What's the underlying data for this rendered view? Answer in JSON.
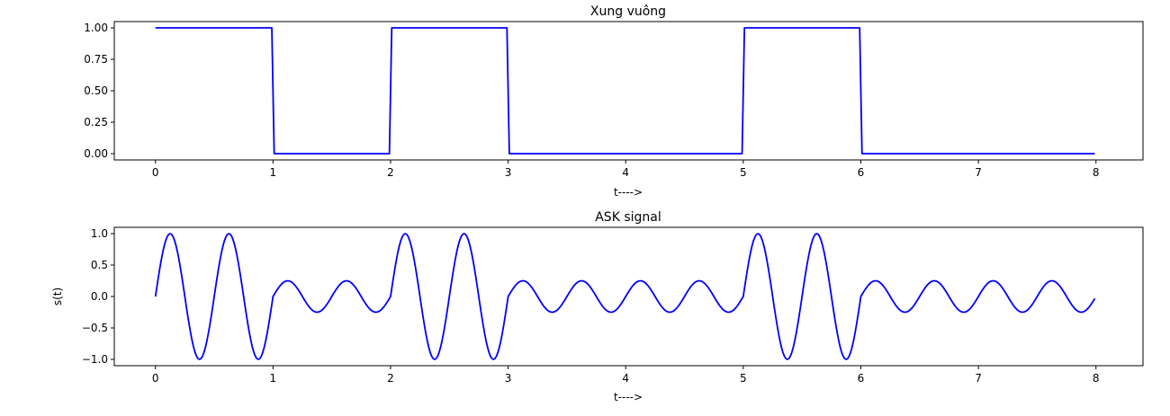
{
  "chart_data": [
    {
      "type": "line",
      "title": "Xung vuông",
      "xlabel": "t---->",
      "ylabel": "",
      "xlim": [
        -0.35,
        8.4
      ],
      "ylim": [
        -0.05,
        1.05
      ],
      "xticks": [
        0,
        1,
        2,
        3,
        4,
        5,
        6,
        7,
        8
      ],
      "xtick_labels": [
        "0",
        "1",
        "2",
        "3",
        "4",
        "5",
        "6",
        "7",
        "8"
      ],
      "yticks": [
        0,
        0.25,
        0.5,
        0.75,
        1.0
      ],
      "ytick_labels": [
        "0.00",
        "0.25",
        "0.50",
        "0.75",
        "1.00"
      ],
      "color": "#0000ff",
      "grid": false,
      "bits": [
        1,
        0,
        1,
        0,
        0,
        1,
        0,
        0
      ],
      "bit_duration": 1
    },
    {
      "type": "line",
      "title": "ASK signal",
      "xlabel": "t---->",
      "ylabel": "s(t)",
      "xlim": [
        -0.35,
        8.4
      ],
      "ylim": [
        -1.1,
        1.1
      ],
      "xticks": [
        0,
        1,
        2,
        3,
        4,
        5,
        6,
        7,
        8
      ],
      "xtick_labels": [
        "0",
        "1",
        "2",
        "3",
        "4",
        "5",
        "6",
        "7",
        "8"
      ],
      "yticks": [
        -1.0,
        -0.5,
        0.0,
        0.5,
        1.0
      ],
      "ytick_labels": [
        "−1.0",
        "−0.5",
        "0.0",
        "0.5",
        "1.0"
      ],
      "color": "#0000ff",
      "grid": false,
      "carrier_cycles_per_bit": 2,
      "amplitude_high": 1.0,
      "amplitude_low": 0.25,
      "bits": [
        1,
        0,
        1,
        0,
        0,
        1,
        0,
        0
      ]
    }
  ]
}
